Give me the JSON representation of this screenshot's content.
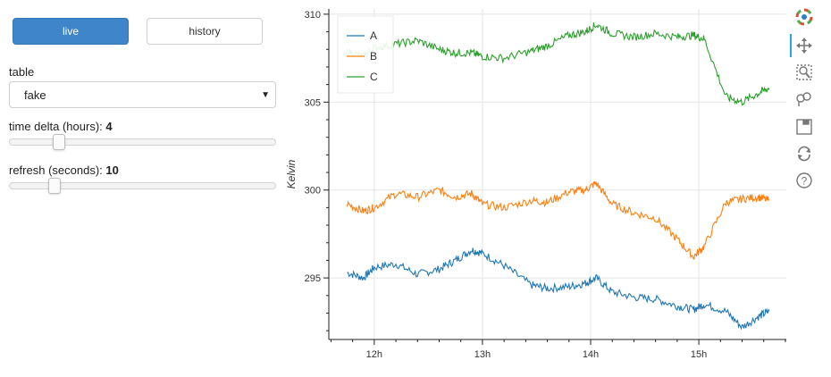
{
  "controls": {
    "live_label": "live",
    "history_label": "history",
    "table_label": "table",
    "table_value": "fake",
    "time_delta_label": "time delta (hours): ",
    "time_delta_value": "4",
    "refresh_label": "refresh (seconds): ",
    "refresh_value": "10",
    "time_delta_fraction": 0.17,
    "refresh_fraction": 0.15
  },
  "toolbar": {
    "tools": [
      "bokeh-logo-icon",
      "pan-icon",
      "box-zoom-icon",
      "wheel-zoom-icon",
      "save-icon",
      "reset-icon",
      "help-icon"
    ]
  },
  "chart_data": {
    "type": "line",
    "title": "",
    "xlabel": "",
    "ylabel": "Kelvin",
    "x_ticks": [
      "12h",
      "13h",
      "14h",
      "15h"
    ],
    "y_ticks": [
      "295",
      "300",
      "305",
      "310"
    ],
    "ylim": [
      291.5,
      310.3
    ],
    "grid": true,
    "legend_position": "top-left",
    "x_hours": [
      11.75,
      11.9,
      12.0,
      12.2,
      12.4,
      12.6,
      12.75,
      12.9,
      13.0,
      13.2,
      13.45,
      13.6,
      13.8,
      13.95,
      14.05,
      14.2,
      14.4,
      14.6,
      14.8,
      14.95,
      15.05,
      15.25,
      15.4,
      15.55,
      15.65
    ],
    "series": [
      {
        "name": "A",
        "color": "#1f77b4",
        "values": [
          295.3,
          295.0,
          295.6,
          295.8,
          295.2,
          295.5,
          296.0,
          296.6,
          296.4,
          295.7,
          294.6,
          294.4,
          294.5,
          294.7,
          295.0,
          294.2,
          293.9,
          293.8,
          293.4,
          293.2,
          293.5,
          293.1,
          292.2,
          292.8,
          293.1
        ]
      },
      {
        "name": "B",
        "color": "#ff7f0e",
        "values": [
          299.2,
          298.8,
          299.0,
          299.8,
          299.6,
          300.0,
          299.6,
          299.8,
          299.2,
          299.0,
          299.4,
          299.3,
          299.9,
          300.0,
          300.4,
          299.2,
          298.7,
          298.4,
          297.2,
          296.2,
          296.8,
          299.3,
          299.5,
          299.6,
          299.4
        ]
      },
      {
        "name": "C",
        "color": "#2ca02c",
        "values": [
          307.9,
          307.6,
          308.1,
          308.3,
          308.5,
          308.0,
          307.8,
          307.8,
          307.6,
          307.5,
          307.9,
          308.2,
          308.8,
          309.0,
          309.4,
          308.9,
          308.7,
          308.9,
          308.7,
          308.8,
          308.6,
          305.3,
          305.0,
          305.5,
          305.8
        ]
      }
    ]
  }
}
